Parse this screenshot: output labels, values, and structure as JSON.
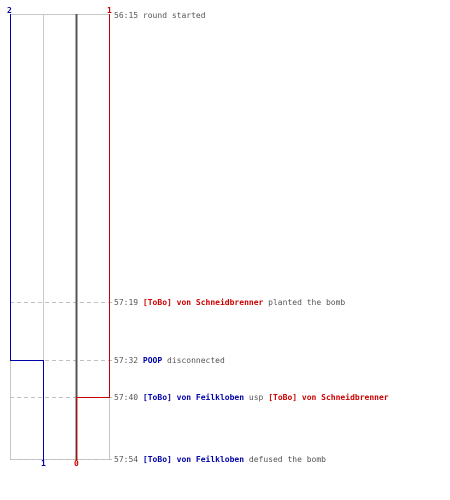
{
  "colors": {
    "t_team": "#cc0000",
    "ct_team": "#0000aa",
    "dead_line": "#555555",
    "grid": "#c8c8c8",
    "text": "#555555"
  },
  "axis": {
    "top_ct": "2",
    "top_t": "1",
    "bottom_ct": "1",
    "bottom_t": "0"
  },
  "player_counts": {
    "ct": [
      2,
      2,
      1,
      1,
      1
    ],
    "t": [
      1,
      1,
      1,
      0,
      0
    ]
  },
  "events": [
    {
      "time": "56:15",
      "actor": "",
      "actor_team": "",
      "action": "round started",
      "target": "",
      "target_team": ""
    },
    {
      "time": "57:19",
      "actor": "[ToBo] von Schneidbrenner",
      "actor_team": "t",
      "action": "planted the bomb",
      "target": "",
      "target_team": ""
    },
    {
      "time": "57:32",
      "actor": "POOP",
      "actor_team": "ct",
      "action": "disconnected",
      "target": "",
      "target_team": ""
    },
    {
      "time": "57:40",
      "actor": "[ToBo] von Feilkloben",
      "actor_team": "ct",
      "action": "usp",
      "target": "[ToBo] von Schneidbrenner",
      "target_team": "t"
    },
    {
      "time": "57:54",
      "actor": "[ToBo] von Feilkloben",
      "actor_team": "ct",
      "action": "defused the bomb",
      "target": "",
      "target_team": ""
    }
  ]
}
